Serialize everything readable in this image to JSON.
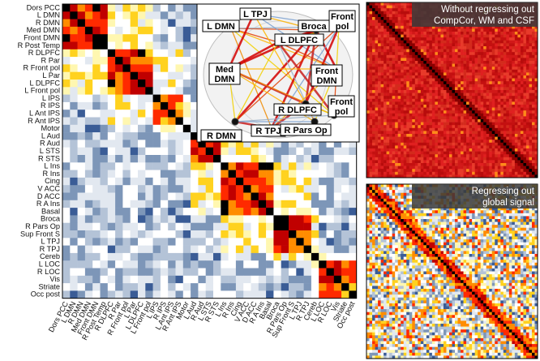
{
  "main_matrix": {
    "labels": [
      "Dors PCC",
      "L DMN",
      "R DMN",
      "Med DMN",
      "Front DMN",
      "R Post Temp",
      "R DLPFC",
      "R Par",
      "R Front pol",
      "L Par",
      "L DLPFC",
      "L Front pol",
      "L IPS",
      "R IPS",
      "L Ant IPS",
      "R Ant IPS",
      "Motor",
      "L Aud",
      "R Aud",
      "L STS",
      "R STS",
      "L Ins",
      "R Ins",
      "Cing",
      "V ACC",
      "D ACC",
      "R A Ins",
      "Basal",
      "Broca",
      "R Pars Op",
      "Sup Front S",
      "L TPJ",
      "R TPJ",
      "Cereb",
      "L LOC",
      "R LOC",
      "Vis",
      "Striate",
      "Occ post"
    ],
    "colormap": [
      "#3a5c96",
      "#7d96b8",
      "#b4c3d7",
      "#e2e8f0",
      "#ffffff",
      "#fff7b0",
      "#ffd21f",
      "#ff8c00",
      "#ff2a00",
      "#c00000",
      "#000000"
    ]
  },
  "brain_graph": {
    "nodes": [
      {
        "id": "ldmn",
        "label": "L DMN"
      },
      {
        "id": "ltpj",
        "label": "L TPJ"
      },
      {
        "id": "broca",
        "label": "Broca"
      },
      {
        "id": "frontpol_top",
        "label": "Front pol"
      },
      {
        "id": "ldlpfc",
        "label": "L DLPFC"
      },
      {
        "id": "meddmn",
        "label": "Med DMN"
      },
      {
        "id": "frontdmn",
        "label": "Front DMN"
      },
      {
        "id": "rdlpfc",
        "label": "R DLPFC"
      },
      {
        "id": "frontpol_bot",
        "label": "Front pol"
      },
      {
        "id": "rdmn",
        "label": "R DMN"
      },
      {
        "id": "rtpj",
        "label": "R TPJ"
      },
      {
        "id": "rparsop",
        "label": "R Pars Op"
      }
    ]
  },
  "panel_top_right": {
    "title_line1": "Without regressing out",
    "title_line2": "CompCor, WM and CSF"
  },
  "panel_bottom_right": {
    "title_line1": "Regressing out",
    "title_line2": "global signal"
  }
}
